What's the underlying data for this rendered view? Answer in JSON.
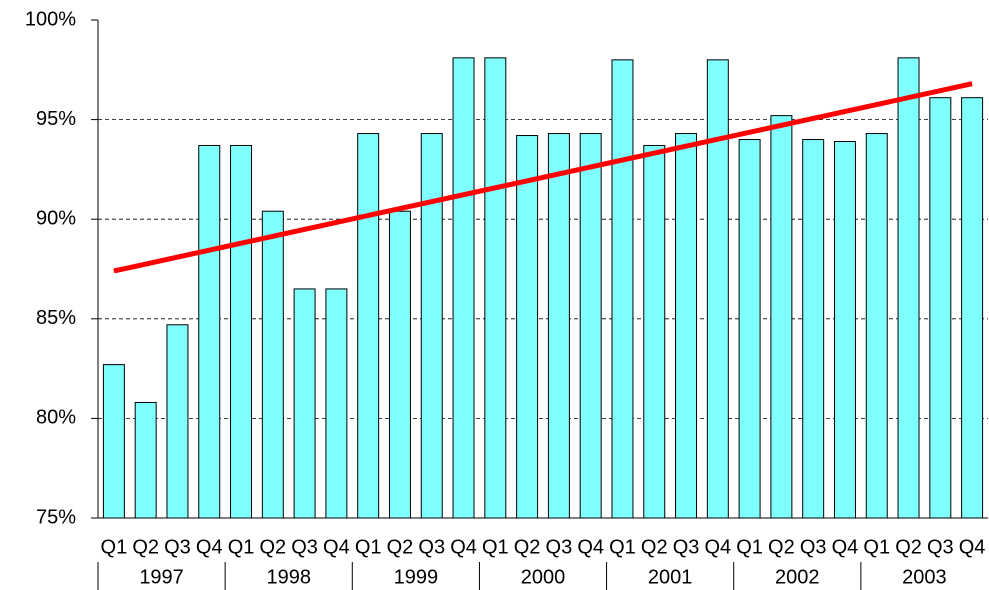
{
  "chart_data": {
    "type": "bar",
    "categories": [
      "Q1",
      "Q2",
      "Q3",
      "Q4",
      "Q1",
      "Q2",
      "Q3",
      "Q4",
      "Q1",
      "Q2",
      "Q3",
      "Q4",
      "Q1",
      "Q2",
      "Q3",
      "Q4",
      "Q1",
      "Q2",
      "Q3",
      "Q4",
      "Q1",
      "Q2",
      "Q3",
      "Q4",
      "Q1",
      "Q2",
      "Q3",
      "Q4"
    ],
    "years": [
      "1997",
      "1998",
      "1999",
      "2000",
      "2001",
      "2002",
      "2003"
    ],
    "values": [
      82.7,
      80.8,
      84.7,
      93.7,
      93.7,
      90.4,
      86.5,
      86.5,
      94.3,
      90.4,
      94.3,
      98.1,
      98.1,
      94.2,
      94.3,
      94.3,
      98.0,
      93.7,
      94.3,
      98.0,
      94.0,
      95.2,
      94.0,
      93.9,
      94.3,
      98.1,
      96.1,
      96.1
    ],
    "color": "#80ffff",
    "trend": {
      "color": "#ff0000",
      "values": [
        87.4,
        96.8
      ]
    },
    "ylim": [
      75,
      100
    ],
    "yticks": [
      {
        "value": 75,
        "label": "75%"
      },
      {
        "value": 80,
        "label": "80%"
      },
      {
        "value": 85,
        "label": "85%"
      },
      {
        "value": 90,
        "label": "90%"
      },
      {
        "value": 95,
        "label": "95%"
      },
      {
        "value": 100,
        "label": "100%"
      }
    ],
    "grid": true
  }
}
